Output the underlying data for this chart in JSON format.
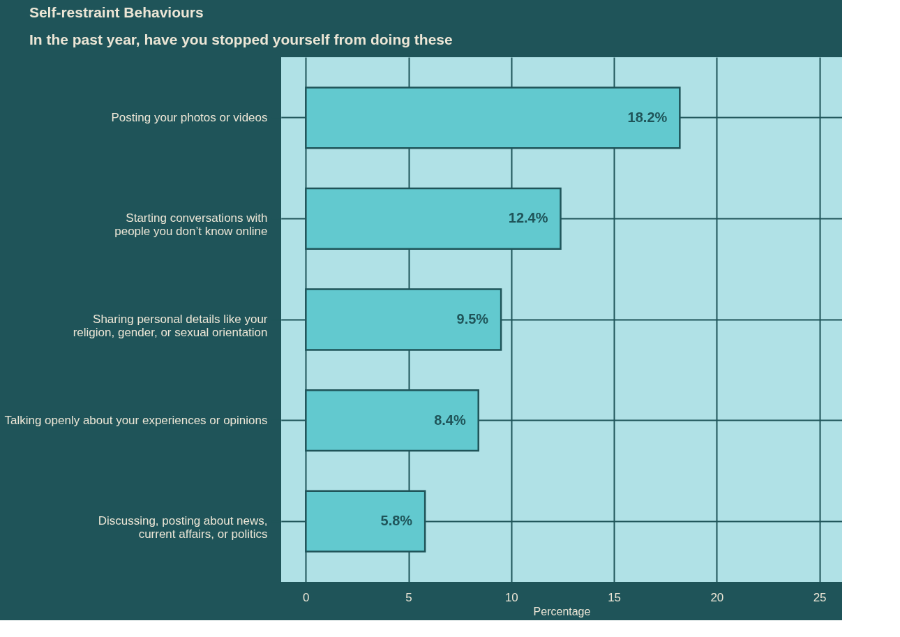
{
  "chart_data": {
    "type": "bar",
    "orientation": "horizontal",
    "title": "Self-restraint Behaviours",
    "subtitle": "In the past year, have you stopped yourself from doing these",
    "xlabel": "Percentage",
    "categories": [
      "Posting your photos or videos",
      "Starting conversations with\npeople you don’t know online",
      "Sharing personal details like your\nreligion, gender, or sexual orientation",
      "Talking openly about your experiences or opinions",
      "Discussing, posting about news,\ncurrent affairs, or politics"
    ],
    "values": [
      18.2,
      12.4,
      9.5,
      8.4,
      5.8
    ],
    "value_labels": [
      "18.2%",
      "12.4%",
      "9.5%",
      "8.4%",
      "5.8%"
    ],
    "color": "#62c9cf",
    "xlim": [
      -1.2,
      26.1
    ],
    "xticks": [
      0,
      5,
      10,
      15,
      20,
      25
    ],
    "grid": true
  }
}
